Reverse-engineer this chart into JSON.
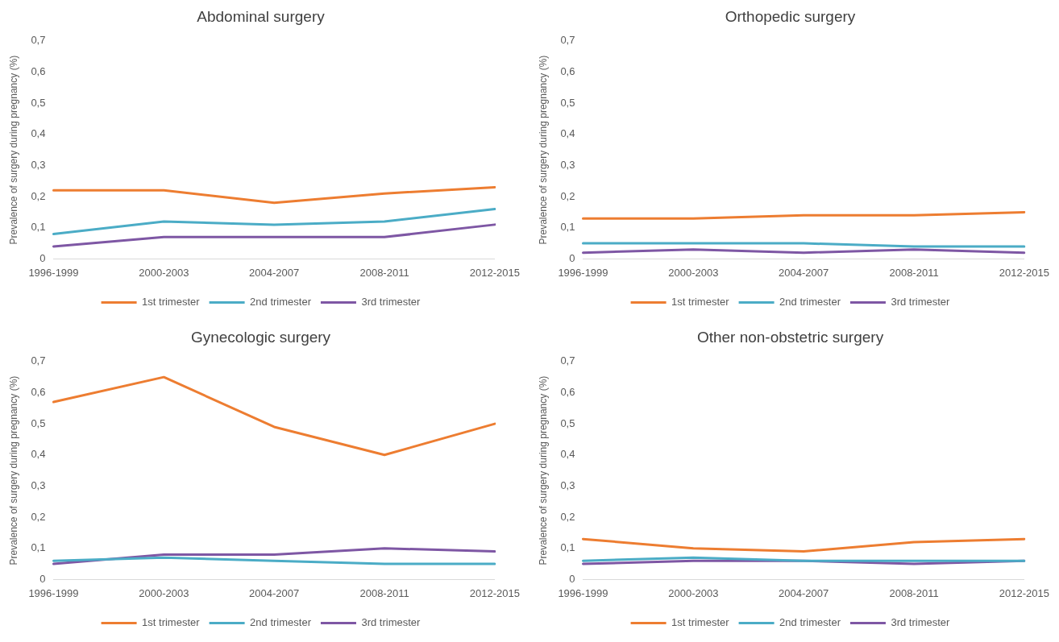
{
  "chart_data": [
    {
      "type": "line",
      "title": "Abdominal surgery",
      "ylabel": "Prevalence of surgery during pregnancy (%)",
      "categories": [
        "1996-1999",
        "2000-2003",
        "2004-2007",
        "2008-2011",
        "2012-2015"
      ],
      "ylim": [
        0,
        0.7
      ],
      "yticks": [
        {
          "value": 0,
          "label": "0"
        },
        {
          "value": 0.1,
          "label": "0,1"
        },
        {
          "value": 0.2,
          "label": "0,2"
        },
        {
          "value": 0.3,
          "label": "0,3"
        },
        {
          "value": 0.4,
          "label": "0,4"
        },
        {
          "value": 0.5,
          "label": "0,5"
        },
        {
          "value": 0.6,
          "label": "0,6"
        },
        {
          "value": 0.7,
          "label": "0,7"
        }
      ],
      "grid": false,
      "legend": "bottom",
      "marker": "none",
      "series": [
        {
          "name": "1st trimester",
          "color": "#ed7d31",
          "values": [
            0.22,
            0.22,
            0.18,
            0.21,
            0.23
          ]
        },
        {
          "name": "2nd trimester",
          "color": "#4bacc6",
          "values": [
            0.08,
            0.12,
            0.11,
            0.12,
            0.16
          ]
        },
        {
          "name": "3rd trimester",
          "color": "#7e57a4",
          "values": [
            0.04,
            0.07,
            0.07,
            0.07,
            0.11
          ]
        }
      ]
    },
    {
      "type": "line",
      "title": "Orthopedic surgery",
      "ylabel": "Prevalence of surgery during pregnancy (%)",
      "categories": [
        "1996-1999",
        "2000-2003",
        "2004-2007",
        "2008-2011",
        "2012-2015"
      ],
      "ylim": [
        0,
        0.7
      ],
      "yticks": [
        {
          "value": 0,
          "label": "0"
        },
        {
          "value": 0.1,
          "label": "0,1"
        },
        {
          "value": 0.2,
          "label": "0,2"
        },
        {
          "value": 0.3,
          "label": "0,3"
        },
        {
          "value": 0.4,
          "label": "0,4"
        },
        {
          "value": 0.5,
          "label": "0,5"
        },
        {
          "value": 0.6,
          "label": "0,6"
        },
        {
          "value": 0.7,
          "label": "0,7"
        }
      ],
      "grid": false,
      "legend": "bottom",
      "marker": "none",
      "series": [
        {
          "name": "1st trimester",
          "color": "#ed7d31",
          "values": [
            0.13,
            0.13,
            0.14,
            0.14,
            0.15
          ]
        },
        {
          "name": "2nd trimester",
          "color": "#4bacc6",
          "values": [
            0.05,
            0.05,
            0.05,
            0.04,
            0.04
          ]
        },
        {
          "name": "3rd trimester",
          "color": "#7e57a4",
          "values": [
            0.02,
            0.03,
            0.02,
            0.03,
            0.02
          ]
        }
      ]
    },
    {
      "type": "line",
      "title": "Gynecologic surgery",
      "ylabel": "Prevalence of surgery during pregnancy (%)",
      "categories": [
        "1996-1999",
        "2000-2003",
        "2004-2007",
        "2008-2011",
        "2012-2015"
      ],
      "ylim": [
        0,
        0.7
      ],
      "yticks": [
        {
          "value": 0,
          "label": "0"
        },
        {
          "value": 0.1,
          "label": "0,1"
        },
        {
          "value": 0.2,
          "label": "0,2"
        },
        {
          "value": 0.3,
          "label": "0,3"
        },
        {
          "value": 0.4,
          "label": "0,4"
        },
        {
          "value": 0.5,
          "label": "0,5"
        },
        {
          "value": 0.6,
          "label": "0,6"
        },
        {
          "value": 0.7,
          "label": "0,7"
        }
      ],
      "grid": false,
      "legend": "bottom",
      "marker": "none",
      "series": [
        {
          "name": "1st trimester",
          "color": "#ed7d31",
          "values": [
            0.57,
            0.65,
            0.49,
            0.4,
            0.5
          ]
        },
        {
          "name": "2nd trimester",
          "color": "#4bacc6",
          "values": [
            0.06,
            0.07,
            0.06,
            0.05,
            0.05
          ]
        },
        {
          "name": "3rd trimester",
          "color": "#7e57a4",
          "values": [
            0.05,
            0.08,
            0.08,
            0.1,
            0.09
          ]
        }
      ]
    },
    {
      "type": "line",
      "title": "Other non-obstetric surgery",
      "ylabel": "Prevalence of surgery during pregnancy (%)",
      "categories": [
        "1996-1999",
        "2000-2003",
        "2004-2007",
        "2008-2011",
        "2012-2015"
      ],
      "ylim": [
        0,
        0.7
      ],
      "yticks": [
        {
          "value": 0,
          "label": "0"
        },
        {
          "value": 0.1,
          "label": "0,1"
        },
        {
          "value": 0.2,
          "label": "0,2"
        },
        {
          "value": 0.3,
          "label": "0,3"
        },
        {
          "value": 0.4,
          "label": "0,4"
        },
        {
          "value": 0.5,
          "label": "0,5"
        },
        {
          "value": 0.6,
          "label": "0,6"
        },
        {
          "value": 0.7,
          "label": "0,7"
        }
      ],
      "grid": false,
      "legend": "bottom",
      "marker": "none",
      "series": [
        {
          "name": "1st trimester",
          "color": "#ed7d31",
          "values": [
            0.13,
            0.1,
            0.09,
            0.12,
            0.13
          ]
        },
        {
          "name": "2nd trimester",
          "color": "#4bacc6",
          "values": [
            0.06,
            0.07,
            0.06,
            0.06,
            0.06
          ]
        },
        {
          "name": "3rd trimester",
          "color": "#7e57a4",
          "values": [
            0.05,
            0.06,
            0.06,
            0.05,
            0.06
          ]
        }
      ]
    }
  ]
}
